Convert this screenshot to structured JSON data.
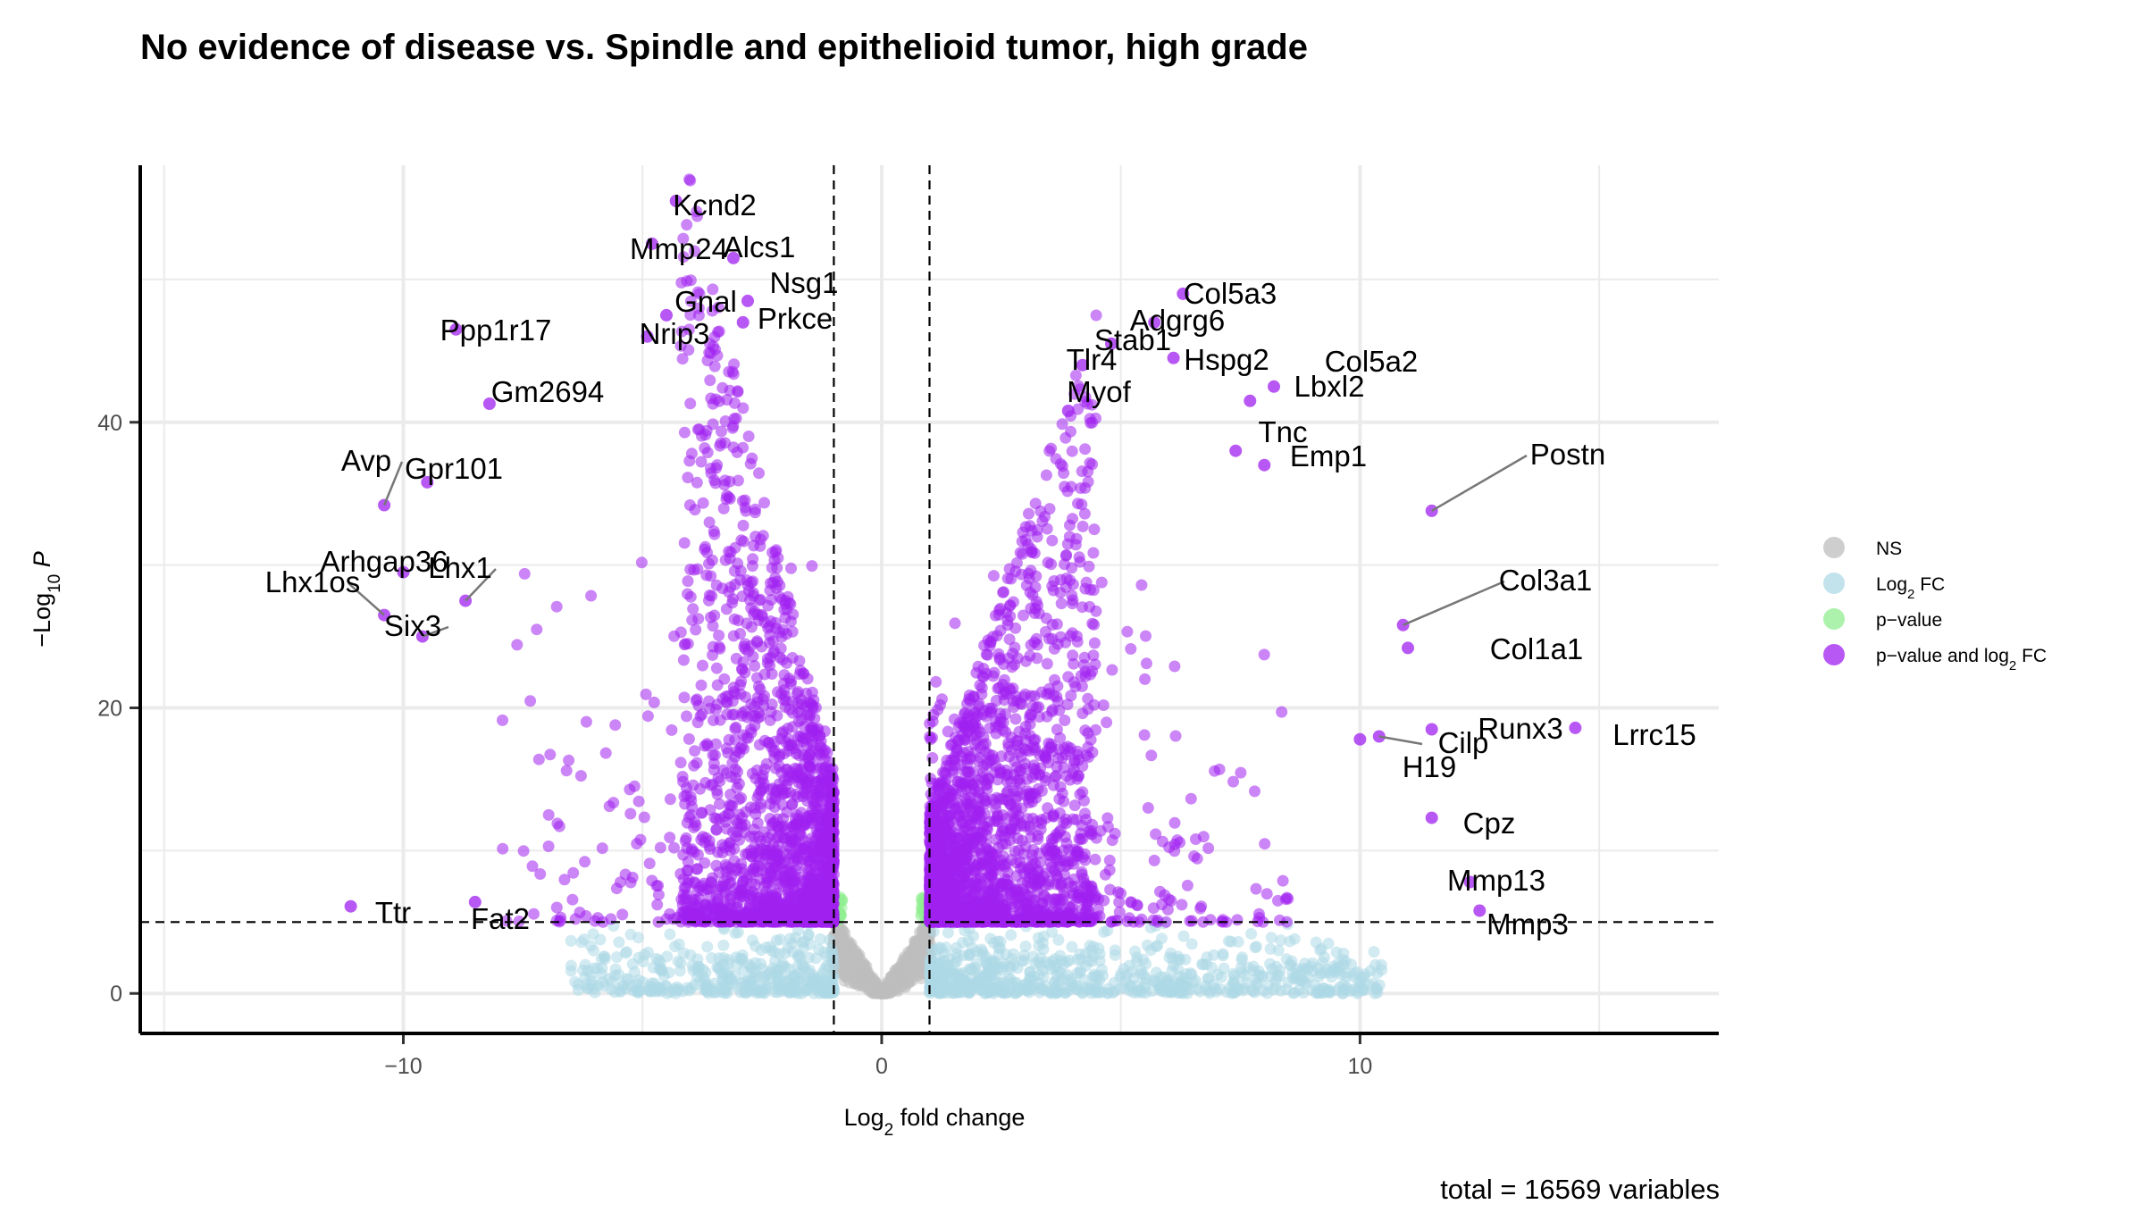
{
  "chart_data": {
    "type": "scatter",
    "title": "No evidence of disease vs. Spindle and epithelioid tumor, high grade",
    "xlabel": "Log2 fold change",
    "ylabel": "-Log10 P",
    "caption": "total = 16569 variables",
    "xlim": [
      -15.5,
      17.5
    ],
    "ylim": [
      -2.8,
      58
    ],
    "x_ticks": [
      {
        "value": -10,
        "label": "−10"
      },
      {
        "value": 0,
        "label": "0"
      },
      {
        "value": 10,
        "label": "10"
      }
    ],
    "y_ticks": [
      {
        "value": 0,
        "label": "0"
      },
      {
        "value": 20,
        "label": "20"
      },
      {
        "value": 40,
        "label": "40"
      }
    ],
    "grid": true,
    "fc_cutoff": 1,
    "p_cutoff": 5,
    "legend": {
      "position": "right",
      "items": [
        {
          "key": "ns",
          "label": "NS",
          "color": "#bebebe"
        },
        {
          "key": "fc",
          "label": "Log",
          "sub": "2",
          "suffix": " FC",
          "color": "#add8e6"
        },
        {
          "key": "p",
          "label": "p−value",
          "color": "#90ee90"
        },
        {
          "key": "both",
          "label": "p−value and log",
          "sub": "2",
          "suffix": " FC",
          "color": "#a020f0"
        }
      ]
    },
    "labeled_points": [
      {
        "gene": "Kcnd2",
        "x": -4.3,
        "y": 55.5
      },
      {
        "gene": "Mmp24",
        "x": -4.8,
        "y": 52.5
      },
      {
        "gene": "Alcs1",
        "x": -3.1,
        "y": 51.5
      },
      {
        "gene": "Nsg1",
        "x": -2.8,
        "y": 48.5
      },
      {
        "gene": "Gnal",
        "x": -4.5,
        "y": 47.5
      },
      {
        "gene": "Prkce",
        "x": -2.9,
        "y": 47.0
      },
      {
        "gene": "Nrip3",
        "x": -4.9,
        "y": 46.0
      },
      {
        "gene": "Ppp1r17",
        "x": -8.9,
        "y": 46.5
      },
      {
        "gene": "Gm2694",
        "x": -8.2,
        "y": 41.3
      },
      {
        "gene": "Avp",
        "x": -10.4,
        "y": 34.2
      },
      {
        "gene": "Gpr101",
        "x": -9.5,
        "y": 35.8
      },
      {
        "gene": "Arhgap36",
        "x": -10.0,
        "y": 29.5
      },
      {
        "gene": "Lhx1",
        "x": -8.7,
        "y": 27.5
      },
      {
        "gene": "Lhx1os",
        "x": -10.4,
        "y": 26.5
      },
      {
        "gene": "Six3",
        "x": -9.6,
        "y": 25.0
      },
      {
        "gene": "Ttr",
        "x": -11.1,
        "y": 6.1
      },
      {
        "gene": "Fat2",
        "x": -8.5,
        "y": 6.4
      },
      {
        "gene": "Col5a3",
        "x": 6.3,
        "y": 49.0
      },
      {
        "gene": "Adgrg6",
        "x": 5.7,
        "y": 47.0
      },
      {
        "gene": "Stab1",
        "x": 4.8,
        "y": 45.5
      },
      {
        "gene": "Tlr4",
        "x": 4.2,
        "y": 44.0
      },
      {
        "gene": "Hspg2",
        "x": 6.1,
        "y": 44.5
      },
      {
        "gene": "Col5a2",
        "x": 8.2,
        "y": 42.5
      },
      {
        "gene": "Myof",
        "x": 3.9,
        "y": 40.8
      },
      {
        "gene": "Lbxl2",
        "x": 7.7,
        "y": 41.5
      },
      {
        "gene": "Tnc",
        "x": 7.4,
        "y": 38.0
      },
      {
        "gene": "Emp1",
        "x": 8.0,
        "y": 37.0
      },
      {
        "gene": "Postn",
        "x": 11.5,
        "y": 33.8
      },
      {
        "gene": "Col3a1",
        "x": 10.9,
        "y": 25.8
      },
      {
        "gene": "Col1a1",
        "x": 11.0,
        "y": 24.2
      },
      {
        "gene": "Runx3",
        "x": 11.5,
        "y": 18.5
      },
      {
        "gene": "Lrrc15",
        "x": 14.5,
        "y": 18.6
      },
      {
        "gene": "Cilp",
        "x": 10.4,
        "y": 18.0
      },
      {
        "gene": "H19",
        "x": 10.0,
        "y": 17.8
      },
      {
        "gene": "Cpz",
        "x": 11.5,
        "y": 12.3
      },
      {
        "gene": "Mmp13",
        "x": 12.3,
        "y": 7.8
      },
      {
        "gene": "Mmp3",
        "x": 12.5,
        "y": 5.8
      }
    ]
  }
}
